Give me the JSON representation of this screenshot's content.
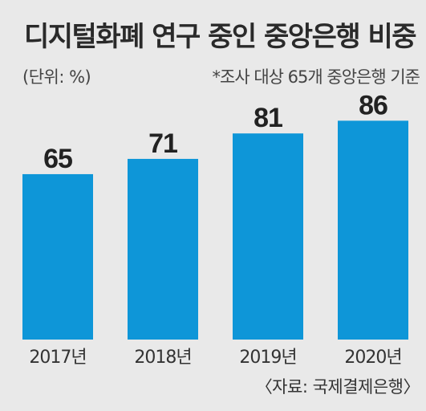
{
  "header": {
    "title": "디지털화폐 연구 중인 중앙은행 비중",
    "unit": "(단위: %)",
    "note": "*조사 대상 65개 중앙은행 기준"
  },
  "footer": {
    "source": "〈자료: 국제결제은행〉"
  },
  "chart_data": {
    "type": "bar",
    "categories": [
      "2017년",
      "2018년",
      "2019년",
      "2020년"
    ],
    "values": [
      65,
      71,
      81,
      86
    ],
    "title": "디지털화폐 연구 중인 중앙은행 비중",
    "xlabel": "",
    "ylabel": "",
    "ylim": [
      0,
      100
    ],
    "grid": false,
    "bar_color": "#0e96d8"
  }
}
